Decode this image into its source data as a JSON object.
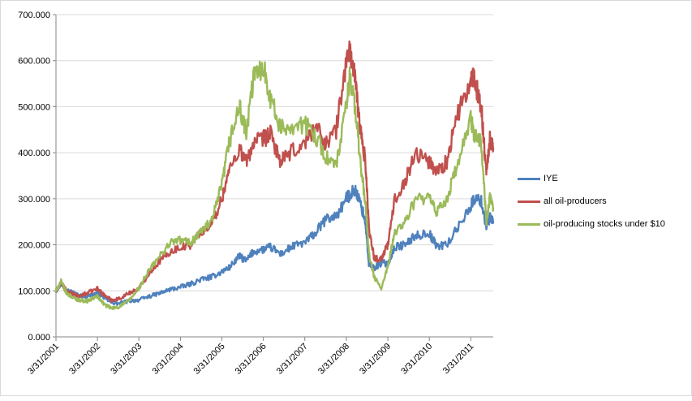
{
  "chart_data": {
    "type": "line",
    "title": "",
    "xlabel": "",
    "ylabel": "",
    "ylim": [
      0,
      700
    ],
    "ytick_labels": [
      "0.000",
      "100.000",
      "200.000",
      "300.000",
      "400.000",
      "500.000",
      "600.000",
      "700.000"
    ],
    "yticks": [
      0,
      100,
      200,
      300,
      400,
      500,
      600,
      700
    ],
    "xlim": [
      "2001-03-31",
      "2011-10-15"
    ],
    "xtick_labels": [
      "3/31/2001",
      "3/31/2002",
      "3/31/2003",
      "3/31/2004",
      "3/31/2005",
      "3/31/2006",
      "3/31/2007",
      "3/31/2008",
      "3/31/2009",
      "3/31/2010",
      "3/31/2011"
    ],
    "xticks": [
      "2001-03-31",
      "2002-03-31",
      "2003-03-31",
      "2004-03-31",
      "2005-03-31",
      "2006-03-31",
      "2007-03-31",
      "2008-03-31",
      "2009-03-31",
      "2010-03-31",
      "2011-03-31"
    ],
    "grid": {
      "horizontal": true,
      "vertical": false
    },
    "legend_position": "right",
    "series": [
      {
        "name": "IYE",
        "color": "#4f81bd",
        "points": [
          [
            "2001-03-31",
            100
          ],
          [
            "2001-05-15",
            115
          ],
          [
            "2001-07-01",
            102
          ],
          [
            "2001-09-01",
            96
          ],
          [
            "2001-10-15",
            90
          ],
          [
            "2002-01-01",
            88
          ],
          [
            "2002-03-31",
            95
          ],
          [
            "2002-06-01",
            85
          ],
          [
            "2002-08-01",
            75
          ],
          [
            "2002-10-01",
            72
          ],
          [
            "2003-01-01",
            78
          ],
          [
            "2003-03-31",
            80
          ],
          [
            "2003-07-01",
            88
          ],
          [
            "2003-10-01",
            95
          ],
          [
            "2004-01-01",
            103
          ],
          [
            "2004-03-31",
            108
          ],
          [
            "2004-07-01",
            115
          ],
          [
            "2004-10-01",
            125
          ],
          [
            "2005-01-01",
            130
          ],
          [
            "2005-03-31",
            142
          ],
          [
            "2005-06-01",
            150
          ],
          [
            "2005-09-01",
            175
          ],
          [
            "2005-11-01",
            165
          ],
          [
            "2006-01-01",
            185
          ],
          [
            "2006-03-31",
            190
          ],
          [
            "2006-06-01",
            195
          ],
          [
            "2006-09-01",
            180
          ],
          [
            "2006-12-01",
            195
          ],
          [
            "2007-03-31",
            205
          ],
          [
            "2007-07-01",
            225
          ],
          [
            "2007-10-01",
            255
          ],
          [
            "2008-01-01",
            262
          ],
          [
            "2008-03-31",
            300
          ],
          [
            "2008-05-01",
            310
          ],
          [
            "2008-06-15",
            320
          ],
          [
            "2008-08-01",
            290
          ],
          [
            "2008-09-15",
            250
          ],
          [
            "2008-10-15",
            155
          ],
          [
            "2008-12-01",
            150
          ],
          [
            "2009-02-01",
            160
          ],
          [
            "2009-03-31",
            160
          ],
          [
            "2009-06-01",
            195
          ],
          [
            "2009-09-01",
            200
          ],
          [
            "2009-12-01",
            220
          ],
          [
            "2010-03-31",
            225
          ],
          [
            "2010-06-01",
            198
          ],
          [
            "2010-09-01",
            200
          ],
          [
            "2010-12-01",
            235
          ],
          [
            "2011-03-31",
            285
          ],
          [
            "2011-05-01",
            300
          ],
          [
            "2011-07-01",
            295
          ],
          [
            "2011-08-15",
            240
          ],
          [
            "2011-09-15",
            258
          ],
          [
            "2011-10-15",
            250
          ]
        ]
      },
      {
        "name": "all oil-producers",
        "color": "#c0504d",
        "points": [
          [
            "2001-03-31",
            100
          ],
          [
            "2001-05-15",
            118
          ],
          [
            "2001-07-01",
            100
          ],
          [
            "2001-09-01",
            92
          ],
          [
            "2001-10-15",
            88
          ],
          [
            "2002-01-01",
            95
          ],
          [
            "2002-03-31",
            105
          ],
          [
            "2002-06-01",
            90
          ],
          [
            "2002-08-01",
            80
          ],
          [
            "2002-10-01",
            82
          ],
          [
            "2003-01-01",
            95
          ],
          [
            "2003-03-31",
            105
          ],
          [
            "2003-07-01",
            140
          ],
          [
            "2003-10-01",
            165
          ],
          [
            "2004-01-01",
            185
          ],
          [
            "2004-03-31",
            195
          ],
          [
            "2004-07-01",
            200
          ],
          [
            "2004-10-01",
            230
          ],
          [
            "2005-01-01",
            245
          ],
          [
            "2005-03-31",
            300
          ],
          [
            "2005-06-01",
            360
          ],
          [
            "2005-09-01",
            410
          ],
          [
            "2005-11-01",
            380
          ],
          [
            "2006-01-01",
            420
          ],
          [
            "2006-03-31",
            430
          ],
          [
            "2006-06-01",
            440
          ],
          [
            "2006-09-01",
            380
          ],
          [
            "2006-12-01",
            400
          ],
          [
            "2007-03-31",
            420
          ],
          [
            "2007-07-01",
            460
          ],
          [
            "2007-10-01",
            420
          ],
          [
            "2008-01-01",
            450
          ],
          [
            "2008-03-31",
            600
          ],
          [
            "2008-05-01",
            625
          ],
          [
            "2008-06-15",
            560
          ],
          [
            "2008-08-01",
            450
          ],
          [
            "2008-09-15",
            380
          ],
          [
            "2008-10-15",
            240
          ],
          [
            "2008-12-01",
            170
          ],
          [
            "2009-02-01",
            170
          ],
          [
            "2009-03-31",
            200
          ],
          [
            "2009-06-01",
            300
          ],
          [
            "2009-09-01",
            340
          ],
          [
            "2009-12-01",
            400
          ],
          [
            "2010-03-31",
            380
          ],
          [
            "2010-06-01",
            360
          ],
          [
            "2010-09-01",
            380
          ],
          [
            "2010-12-01",
            480
          ],
          [
            "2011-03-31",
            555
          ],
          [
            "2011-05-01",
            560
          ],
          [
            "2011-07-01",
            500
          ],
          [
            "2011-08-15",
            360
          ],
          [
            "2011-09-15",
            430
          ],
          [
            "2011-10-15",
            410
          ]
        ]
      },
      {
        "name": "oil-producing stocks under $10",
        "color": "#9bbb59",
        "points": [
          [
            "2001-03-31",
            100
          ],
          [
            "2001-05-15",
            120
          ],
          [
            "2001-07-01",
            95
          ],
          [
            "2001-09-01",
            85
          ],
          [
            "2001-10-15",
            80
          ],
          [
            "2002-01-01",
            78
          ],
          [
            "2002-03-31",
            88
          ],
          [
            "2002-06-01",
            70
          ],
          [
            "2002-08-01",
            62
          ],
          [
            "2002-10-01",
            65
          ],
          [
            "2003-01-01",
            78
          ],
          [
            "2003-03-31",
            105
          ],
          [
            "2003-07-01",
            145
          ],
          [
            "2003-10-01",
            175
          ],
          [
            "2004-01-01",
            205
          ],
          [
            "2004-03-31",
            210
          ],
          [
            "2004-07-01",
            205
          ],
          [
            "2004-10-01",
            230
          ],
          [
            "2005-01-01",
            250
          ],
          [
            "2005-03-31",
            330
          ],
          [
            "2005-06-01",
            420
          ],
          [
            "2005-09-01",
            500
          ],
          [
            "2005-11-01",
            440
          ],
          [
            "2006-01-01",
            560
          ],
          [
            "2006-03-31",
            590
          ],
          [
            "2006-06-01",
            520
          ],
          [
            "2006-09-01",
            450
          ],
          [
            "2006-12-01",
            460
          ],
          [
            "2007-03-31",
            460
          ],
          [
            "2007-07-01",
            440
          ],
          [
            "2007-10-01",
            390
          ],
          [
            "2008-01-01",
            370
          ],
          [
            "2008-03-31",
            500
          ],
          [
            "2008-05-01",
            570
          ],
          [
            "2008-06-15",
            500
          ],
          [
            "2008-08-01",
            380
          ],
          [
            "2008-09-15",
            290
          ],
          [
            "2008-10-15",
            180
          ],
          [
            "2008-12-01",
            130
          ],
          [
            "2009-02-01",
            105
          ],
          [
            "2009-03-31",
            150
          ],
          [
            "2009-06-01",
            230
          ],
          [
            "2009-09-01",
            250
          ],
          [
            "2009-12-01",
            300
          ],
          [
            "2010-03-31",
            300
          ],
          [
            "2010-06-01",
            270
          ],
          [
            "2010-09-01",
            300
          ],
          [
            "2010-12-01",
            370
          ],
          [
            "2011-03-31",
            470
          ],
          [
            "2011-05-01",
            440
          ],
          [
            "2011-07-01",
            420
          ],
          [
            "2011-08-15",
            250
          ],
          [
            "2011-09-15",
            300
          ],
          [
            "2011-10-15",
            280
          ]
        ]
      }
    ]
  }
}
